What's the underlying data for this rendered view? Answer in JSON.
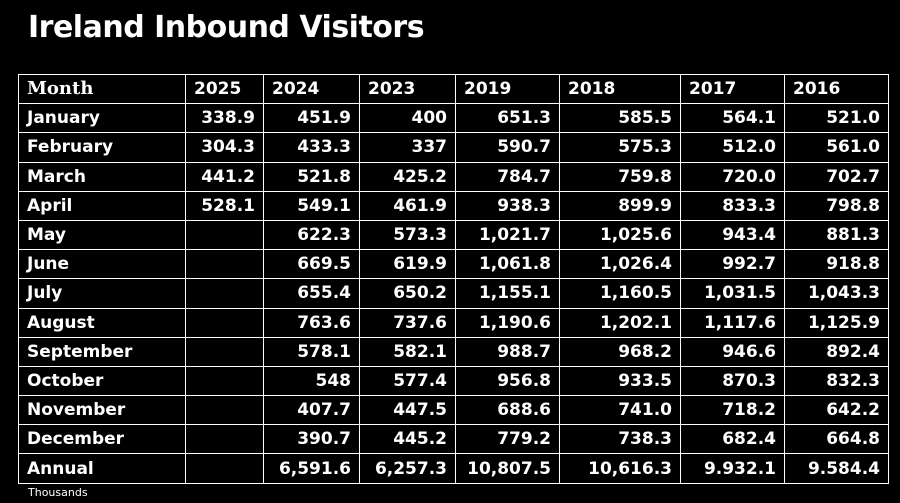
{
  "title": "Ireland Inbound Visitors",
  "footnote": "Thousands",
  "table": {
    "columns": [
      "Month",
      "2025",
      "2024",
      "2023",
      "2019",
      "2018",
      "2017",
      "2016"
    ],
    "rows": [
      [
        "January",
        "338.9",
        "451.9",
        "400",
        "651.3",
        "585.5",
        "564.1",
        "521.0"
      ],
      [
        "February",
        "304.3",
        "433.3",
        "337",
        "590.7",
        "575.3",
        "512.0",
        "561.0"
      ],
      [
        "March",
        "441.2",
        "521.8",
        "425.2",
        "784.7",
        "759.8",
        "720.0",
        "702.7"
      ],
      [
        "April",
        "528.1",
        "549.1",
        "461.9",
        "938.3",
        "899.9",
        "833.3",
        "798.8"
      ],
      [
        "May",
        "",
        "622.3",
        "573.3",
        "1,021.7",
        "1,025.6",
        "943.4",
        "881.3"
      ],
      [
        "June",
        "",
        "669.5",
        "619.9",
        "1,061.8",
        "1,026.4",
        "992.7",
        "918.8"
      ],
      [
        "July",
        "",
        "655.4",
        "650.2",
        "1,155.1",
        "1,160.5",
        "1,031.5",
        "1,043.3"
      ],
      [
        "August",
        "",
        "763.6",
        "737.6",
        "1,190.6",
        "1,202.1",
        "1,117.6",
        "1,125.9"
      ],
      [
        "September",
        "",
        "578.1",
        "582.1",
        "988.7",
        "968.2",
        "946.6",
        "892.4"
      ],
      [
        "October",
        "",
        "548",
        "577.4",
        "956.8",
        "933.5",
        "870.3",
        "832.3"
      ],
      [
        "November",
        "",
        "407.7",
        "447.5",
        "688.6",
        "741.0",
        "718.2",
        "642.2"
      ],
      [
        "December",
        "",
        "390.7",
        "445.2",
        "779.2",
        "738.3",
        "682.4",
        "664.8"
      ],
      [
        "Annual",
        "",
        "6,591.6",
        "6,257.3",
        "10,807.5",
        "10,616.3",
        "9.932.1",
        "9.584.4"
      ]
    ]
  }
}
